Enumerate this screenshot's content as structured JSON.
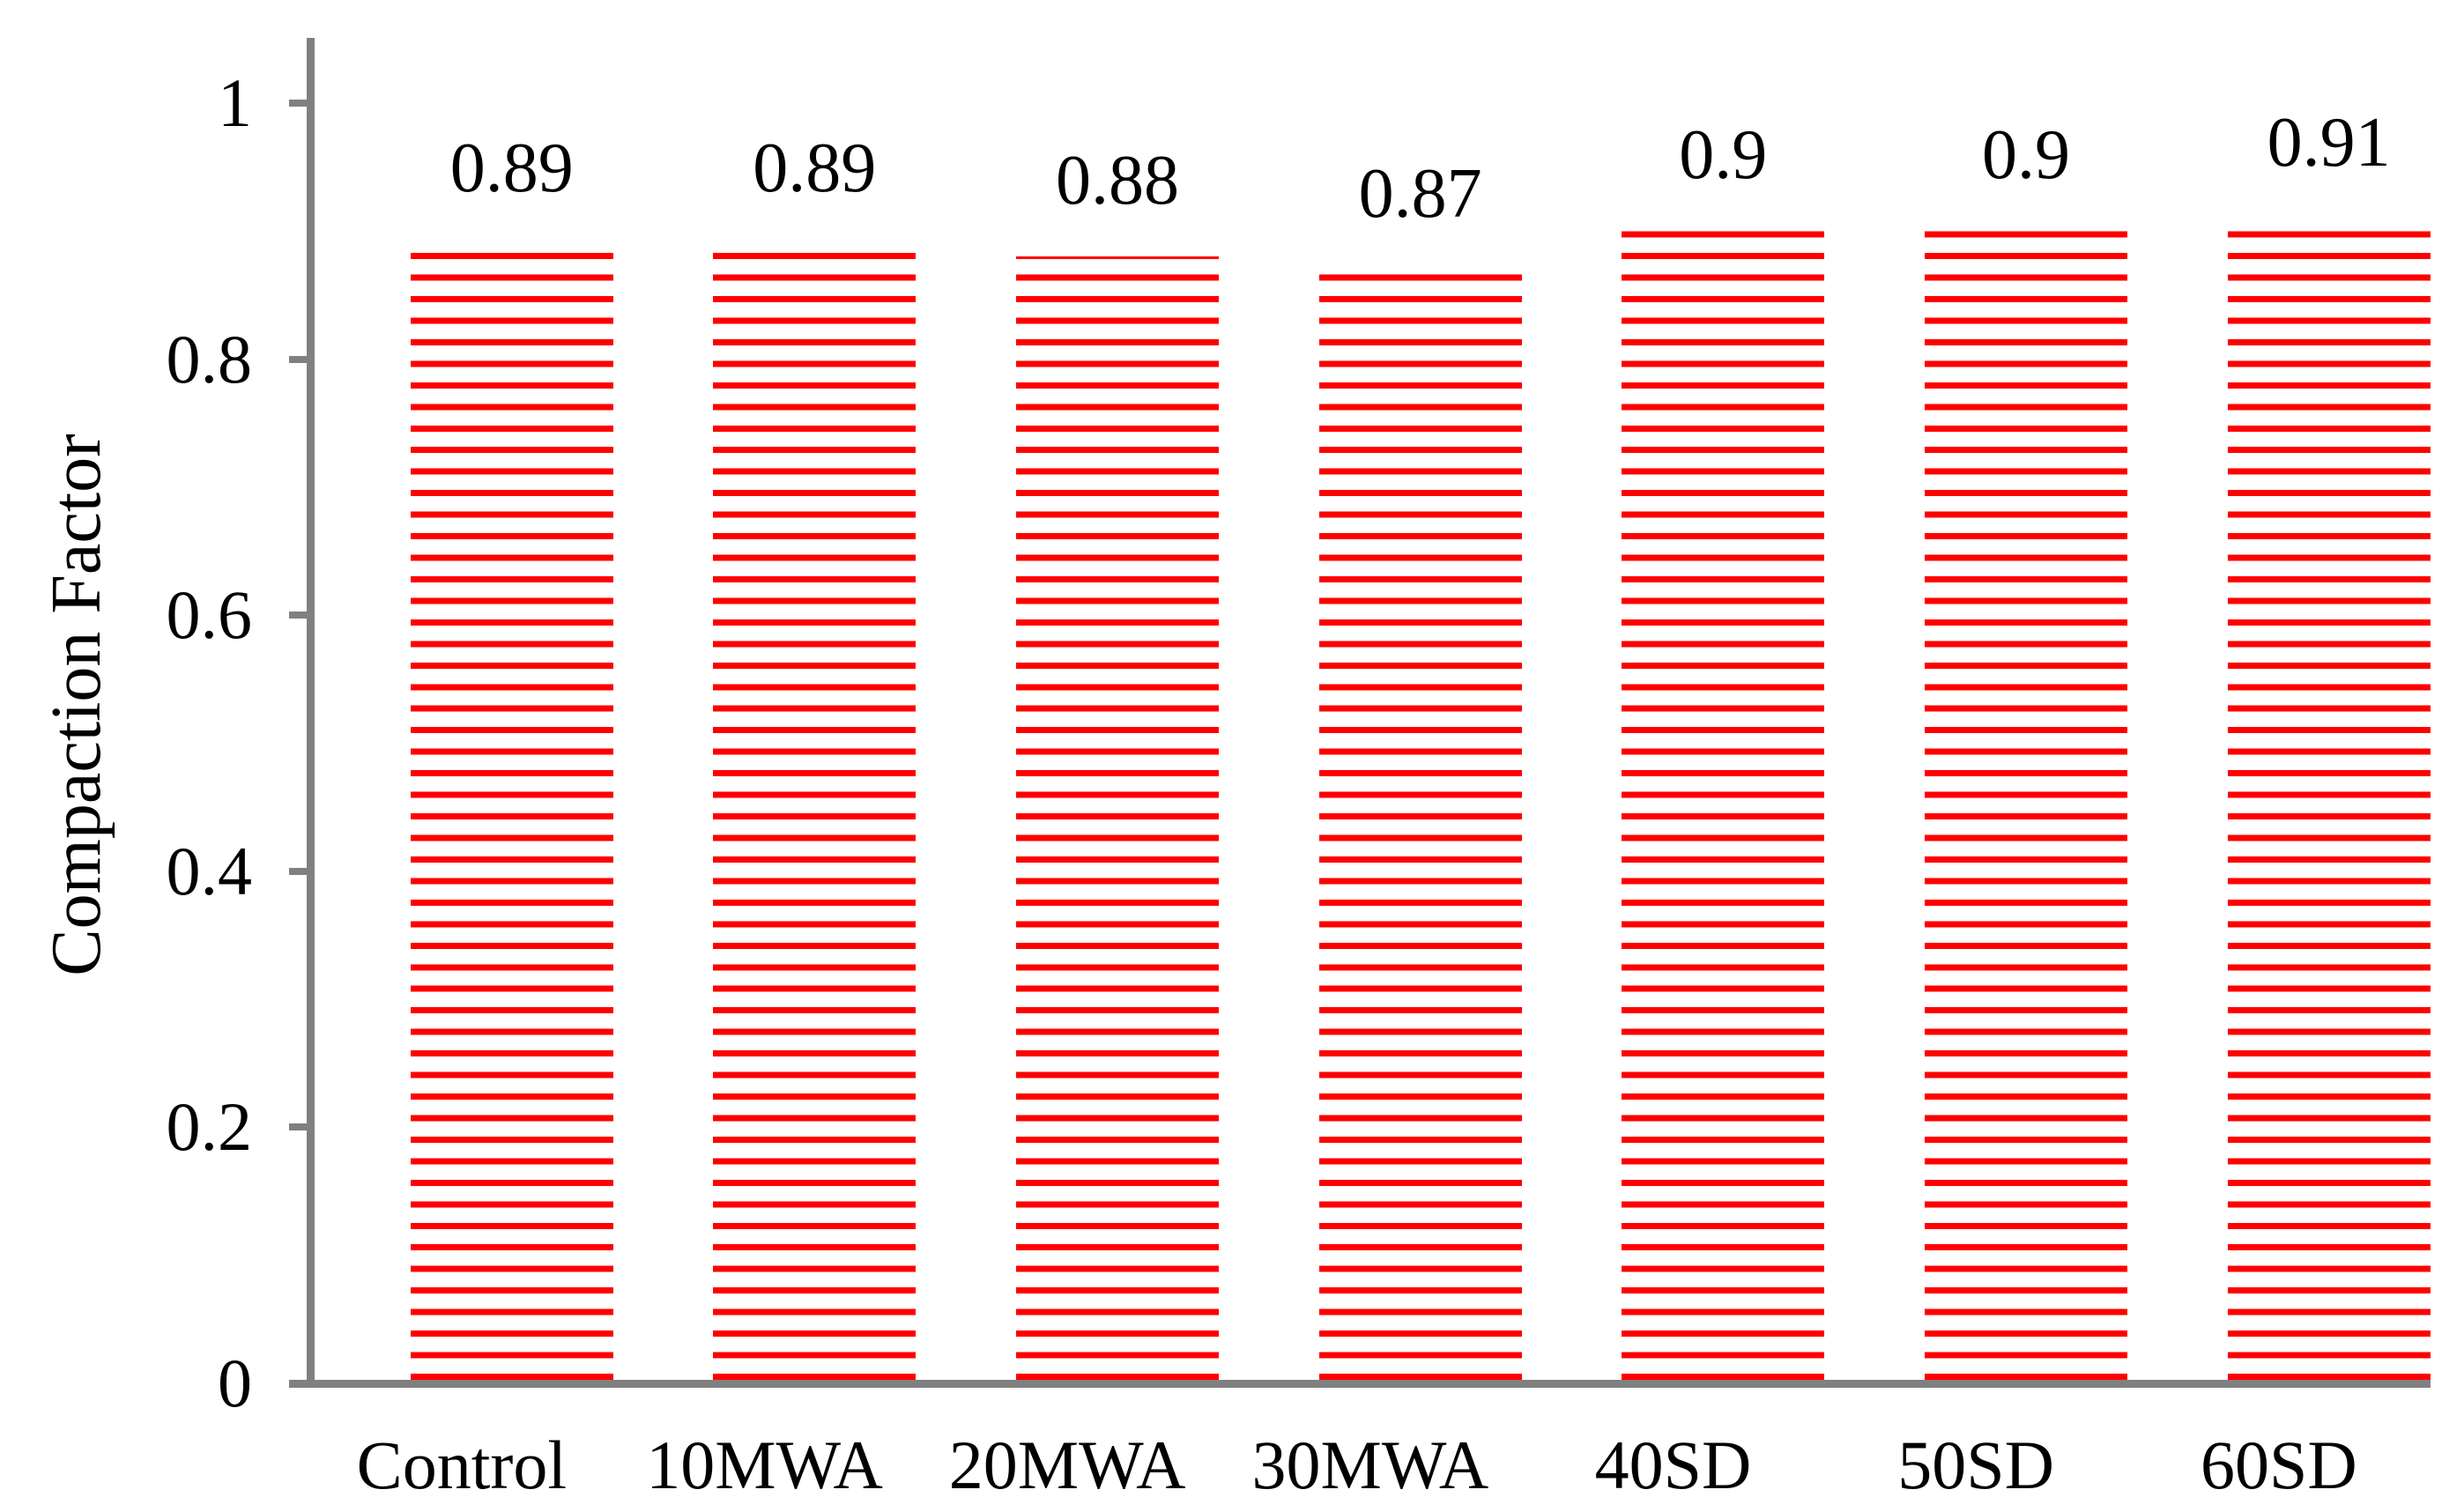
{
  "chart_data": {
    "type": "bar",
    "title": "",
    "xlabel": "",
    "ylabel": "Compaction Factor",
    "categories": [
      "Control",
      "10MWA",
      "20MWA",
      "30MWA",
      "40SD",
      "50SD",
      "60SD"
    ],
    "values": [
      0.89,
      0.89,
      0.88,
      0.87,
      0.9,
      0.9,
      0.91
    ],
    "value_labels": [
      "0.89",
      "0.89",
      "0.88",
      "0.87",
      "0.9",
      "0.9",
      "0.91"
    ],
    "ytick_values": [
      0,
      0.2,
      0.4,
      0.6,
      0.8,
      1
    ],
    "ytick_labels": [
      "0",
      "0.2",
      "0.4",
      "0.6",
      "0.8",
      "1"
    ],
    "ylim": [
      0,
      1.05
    ],
    "grid": false,
    "legend": "none",
    "styles": {
      "bar_color": "#fe0000",
      "bar_fill_pattern": "horizontal-stripes",
      "bar_gap_color": "#ffffff",
      "axis_color": "#808080",
      "text_color": "#000000",
      "background": "#ffffff"
    }
  }
}
